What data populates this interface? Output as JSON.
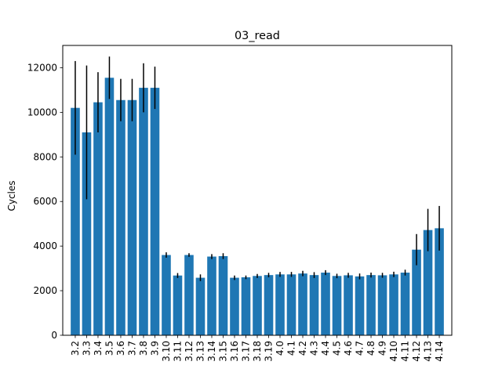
{
  "chart_data": {
    "type": "bar",
    "title": "03_read",
    "xlabel": "",
    "ylabel": "Cycles",
    "ylim": [
      0,
      13000
    ],
    "yticks": [
      0,
      2000,
      4000,
      6000,
      8000,
      10000,
      12000
    ],
    "grid": false,
    "bar_color": "#1f77b4",
    "error_color": "#000000",
    "categories": [
      "3.2",
      "3.3",
      "3.4",
      "3.5",
      "3.6",
      "3.7",
      "3.8",
      "3.9",
      "3.10",
      "3.11",
      "3.12",
      "3.13",
      "3.14",
      "3.15",
      "3.16",
      "3.17",
      "3.18",
      "3.19",
      "4.0",
      "4.1",
      "4.2",
      "4.3",
      "4.4",
      "4.5",
      "4.6",
      "4.7",
      "4.8",
      "4.9",
      "4.10",
      "4.11",
      "4.12",
      "4.13",
      "4.14"
    ],
    "values": [
      10200,
      9100,
      10450,
      11550,
      10550,
      10550,
      11100,
      11100,
      3600,
      2680,
      3600,
      2580,
      3530,
      3550,
      2580,
      2600,
      2660,
      2700,
      2730,
      2730,
      2770,
      2700,
      2810,
      2660,
      2690,
      2640,
      2700,
      2690,
      2730,
      2810,
      3840,
      4720,
      4800
    ],
    "errors": [
      2100,
      3000,
      1350,
      950,
      950,
      950,
      1100,
      950,
      120,
      110,
      80,
      150,
      110,
      130,
      100,
      80,
      90,
      100,
      110,
      110,
      120,
      130,
      110,
      100,
      110,
      130,
      110,
      110,
      120,
      130,
      700,
      950,
      1000
    ]
  }
}
